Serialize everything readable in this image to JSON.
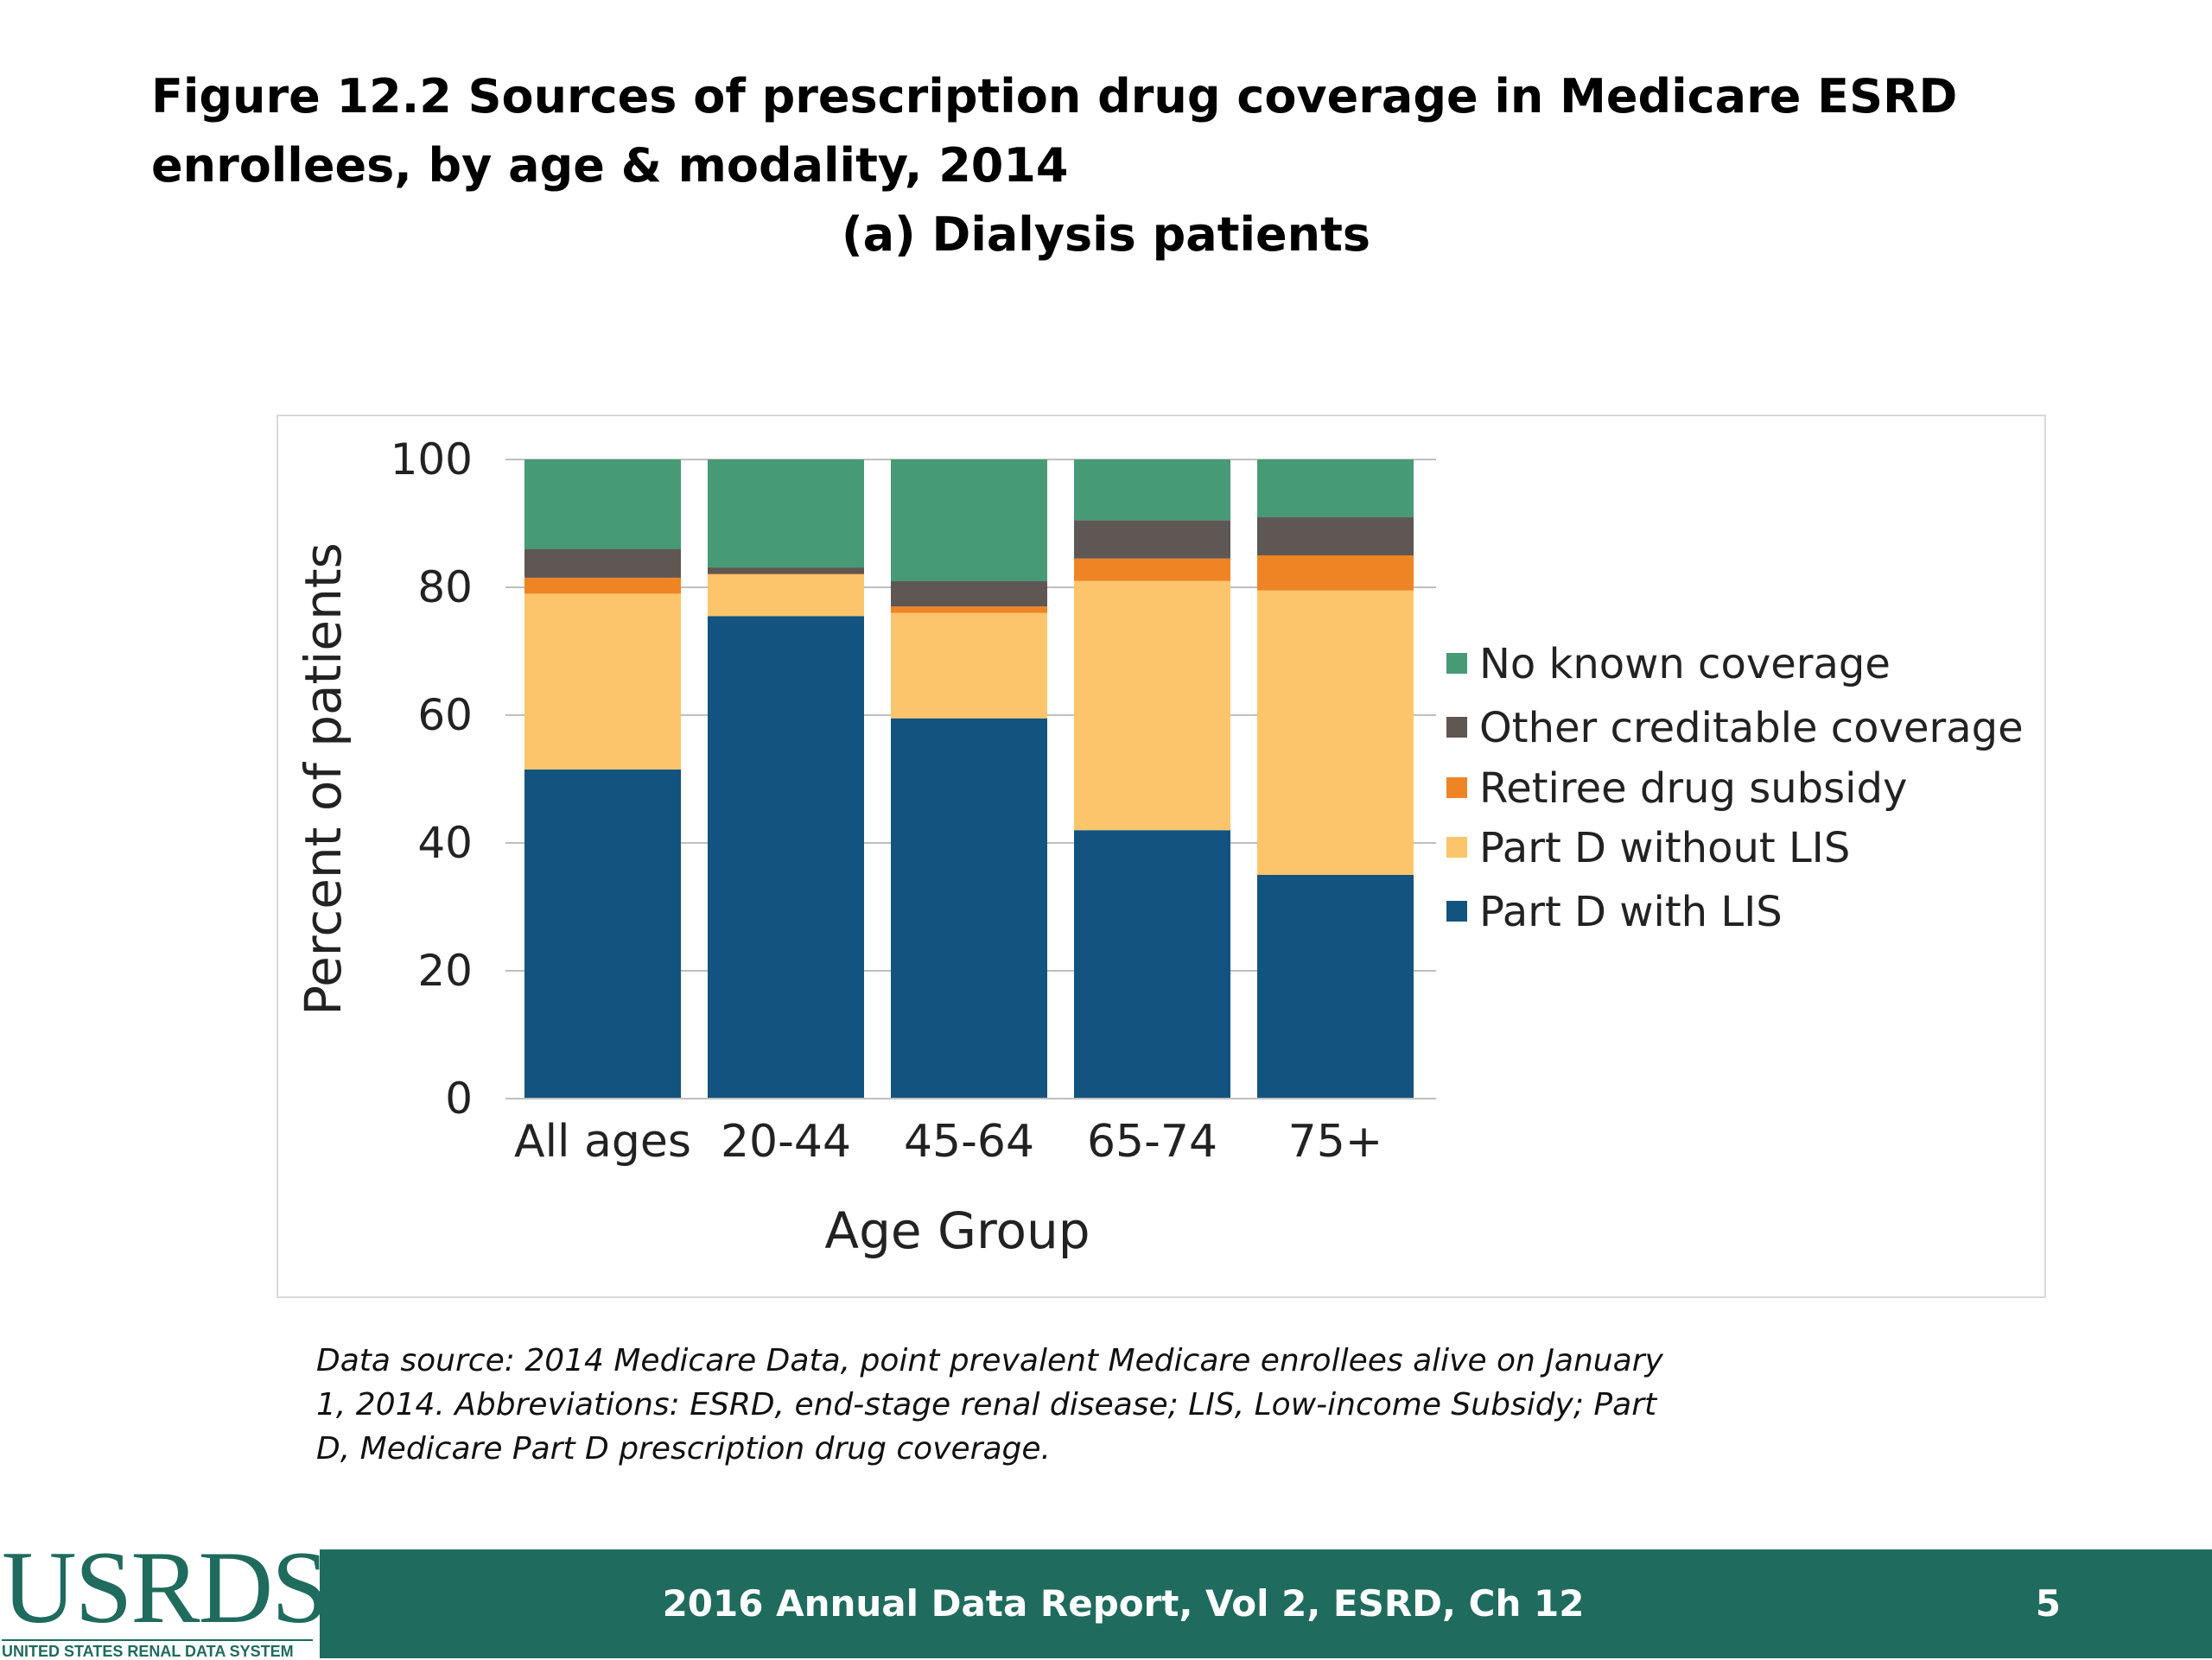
{
  "title": "Figure 12.2  Sources of prescription drug coverage in Medicare ESRD enrollees, by age &   modality, 2014",
  "subtitle": "(a) Dialysis patients",
  "chart_data": {
    "type": "bar",
    "stacked": true,
    "categories": [
      "All ages",
      "20-44",
      "45-64",
      "65-74",
      "75+"
    ],
    "series": [
      {
        "name": "Part D with LIS",
        "color": "#12547f",
        "values": [
          51.5,
          75.5,
          59.5,
          42,
          35
        ]
      },
      {
        "name": "Part D without LIS",
        "color": "#fcc56b",
        "values": [
          27.5,
          6.5,
          16.5,
          39,
          44.5
        ]
      },
      {
        "name": "Retiree drug subsidy",
        "color": "#ef8424",
        "values": [
          2.5,
          0.1,
          1.0,
          3.5,
          5.5
        ]
      },
      {
        "name": "Other creditable coverage",
        "color": "#5f5753",
        "values": [
          4.5,
          1.0,
          4.0,
          6.0,
          6.0
        ]
      },
      {
        "name": "No known coverage",
        "color": "#479a76",
        "values": [
          14,
          16.9,
          19,
          9.5,
          9
        ]
      }
    ],
    "xlabel": "Age Group",
    "ylabel": "Percent of patients",
    "ylim": [
      0,
      100
    ],
    "yticks": [
      0,
      20,
      40,
      60,
      80,
      100
    ],
    "legend_position": "right",
    "legend_order": [
      "No known coverage",
      "Other creditable coverage",
      "Retiree drug subsidy",
      "Part D without LIS",
      "Part D with LIS"
    ]
  },
  "note": "Data source: 2014 Medicare Data, point prevalent Medicare enrollees alive on January 1, 2014. Abbreviations: ESRD, end-stage renal disease; LIS, Low-income Subsidy; Part D, Medicare Part D prescription drug coverage.",
  "footer": {
    "logo_text": "USRDS",
    "logo_subtext": "UNITED STATES RENAL DATA SYSTEM",
    "report": "2016 Annual Data Report, Vol 2, ESRD, Ch 12",
    "page": "5",
    "color": "#1f6b5d"
  }
}
